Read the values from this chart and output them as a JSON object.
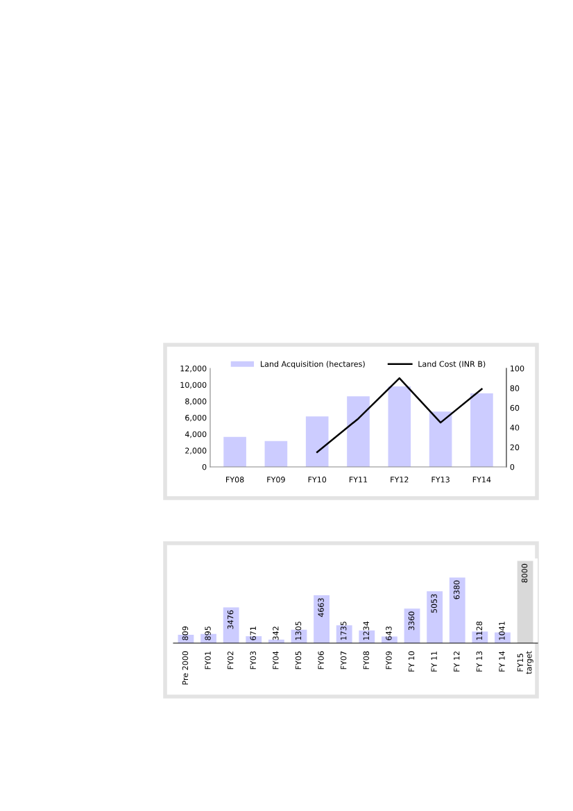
{
  "chart_data": [
    {
      "type": "bar",
      "categories": [
        "FY08",
        "FY09",
        "FY10",
        "FY11",
        "FY12",
        "FY13",
        "FY14"
      ],
      "series": [
        {
          "name": "Land Acquisition (hectares)",
          "color": "#ccccff",
          "values": [
            3650,
            3150,
            6150,
            8600,
            9800,
            6750,
            8950
          ]
        },
        {
          "name": "Land Cost (INR B)",
          "color": "#000000",
          "type": "line",
          "axis": "y2",
          "values": [
            null,
            null,
            15,
            49,
            90,
            45,
            79
          ]
        }
      ],
      "ylim": [
        0,
        12000
      ],
      "yticks": [
        {
          "value": 0,
          "label": "0"
        },
        {
          "value": 2000,
          "label": "2,000"
        },
        {
          "value": 4000,
          "label": "4,000"
        },
        {
          "value": 6000,
          "label": "6,000"
        },
        {
          "value": 8000,
          "label": "8,000"
        },
        {
          "value": 10000,
          "label": "10,000"
        },
        {
          "value": 12000,
          "label": "12,000"
        }
      ],
      "y2lim": [
        0,
        100
      ],
      "y2ticks": [
        0,
        20,
        40,
        60,
        80,
        100
      ],
      "grid": false,
      "legend": "top"
    },
    {
      "type": "bar",
      "categories": [
        "Pre 2000",
        "FY01",
        "FY02",
        "FY03",
        "FY04",
        "FY05",
        "FY06",
        "FY07",
        "FY08",
        "FY09",
        "FY 10",
        "FY 11",
        "FY 12",
        "FY 13",
        "FY 14",
        "FY15\ntarget"
      ],
      "values": [
        809,
        895,
        3476,
        671,
        342,
        1305,
        4663,
        1735,
        1234,
        643,
        3360,
        5053,
        6380,
        1128,
        1041,
        8000
      ],
      "colors": [
        "#ccccff",
        "#ccccff",
        "#ccccff",
        "#ccccff",
        "#ccccff",
        "#ccccff",
        "#ccccff",
        "#ccccff",
        "#ccccff",
        "#ccccff",
        "#ccccff",
        "#ccccff",
        "#ccccff",
        "#ccccff",
        "#ccccff",
        "#d9d9d9"
      ],
      "data_labels": true,
      "tick_labels": "x",
      "grid": false
    }
  ]
}
